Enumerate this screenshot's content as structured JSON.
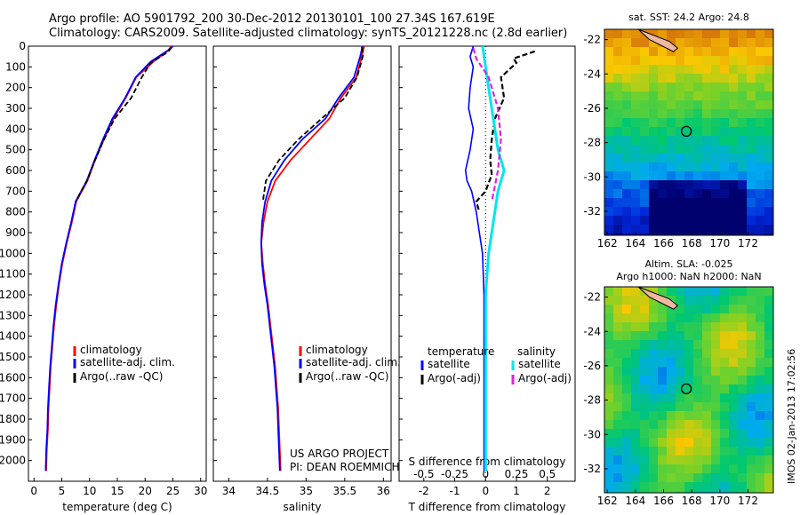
{
  "header": {
    "line1": "Argo profile: AO 5901792_200 30-Dec-2012 20130101_100 27.34S 167.619E",
    "line2": "Climatology: CARS2009. Satellite-adjusted climatology: synTS_20121228.nc (2.8d earlier)"
  },
  "maps": {
    "sst_title": "sat. SST: 24.2 Argo: 24.8",
    "sla_title1": "Altim. SLA: -0.025",
    "sla_title2": "Argo h1000: NaN h2000: NaN",
    "lat_ticks": [
      "-22",
      "-24",
      "-26",
      "-28",
      "-30",
      "-32"
    ],
    "lon_ticks": [
      "162",
      "164",
      "166",
      "168",
      "170",
      "172"
    ],
    "float_position": {
      "lon": 167.619,
      "lat": -27.34
    }
  },
  "stamp": "IMOS 02-Jan-2013 17:02:56",
  "colors": {
    "climatology": "#ff0000",
    "satellite": "#0000ff",
    "argo": "#000000",
    "satellite_salinity": "#00e5ee",
    "argo_salinity": "#e020e0"
  },
  "chart_data": [
    {
      "type": "line",
      "panel": "temperature",
      "xlabel": "temperature (deg C)",
      "xlim": [
        -1,
        31
      ],
      "ylim": [
        2100,
        0
      ],
      "xticks": [
        "0",
        "5",
        "10",
        "15",
        "20",
        "25",
        "30"
      ],
      "yticks": [
        "0",
        "100",
        "200",
        "300",
        "400",
        "500",
        "600",
        "700",
        "800",
        "900",
        "1000",
        "1100",
        "1200",
        "1300",
        "1400",
        "1500",
        "1600",
        "1700",
        "1800",
        "1900",
        "2000"
      ],
      "legend": [
        "climatology",
        "satellite-adj. clim.",
        "Argo(..raw -QC)"
      ],
      "series": [
        {
          "name": "climatology",
          "x": [
            24.7,
            24.2,
            21.5,
            18.4,
            16.5,
            14.3,
            12.6,
            11.0,
            9.6,
            7.6,
            6.8,
            5.9,
            5.1,
            4.5,
            4.0,
            3.6,
            3.3,
            3.0,
            2.8,
            2.6,
            2.5,
            2.3,
            2.2
          ],
          "y": [
            0,
            20,
            75,
            150,
            250,
            350,
            450,
            550,
            650,
            750,
            850,
            950,
            1050,
            1150,
            1250,
            1350,
            1450,
            1550,
            1650,
            1750,
            1850,
            1950,
            2050
          ]
        },
        {
          "name": "satellite-adj. clim.",
          "x": [
            25.0,
            24.1,
            21.0,
            18.3,
            16.4,
            14.1,
            12.4,
            10.9,
            9.5,
            7.5,
            6.7,
            5.8,
            5.0,
            4.4,
            3.9,
            3.5,
            3.2,
            2.9,
            2.7,
            2.5,
            2.4,
            2.2,
            2.1
          ],
          "y": [
            0,
            20,
            75,
            150,
            250,
            350,
            450,
            550,
            650,
            750,
            850,
            950,
            1050,
            1150,
            1250,
            1350,
            1450,
            1550,
            1650,
            1750,
            1850,
            1950,
            2050
          ]
        },
        {
          "name": "Argo(..raw -QC)",
          "x": [
            24.8,
            24.0,
            21.0,
            19.4,
            17.5,
            14.5,
            12.6,
            11.0,
            9.5,
            7.5
          ],
          "y": [
            5,
            30,
            80,
            150,
            250,
            350,
            450,
            550,
            650,
            750
          ]
        }
      ]
    },
    {
      "type": "line",
      "panel": "salinity",
      "xlabel": "salinity",
      "xlim": [
        33.8,
        36.1
      ],
      "ylim": [
        2100,
        0
      ],
      "xticks": [
        "34",
        "34.5",
        "35",
        "35.5",
        "36"
      ],
      "legend": [
        "climatology",
        "satellite-adj. clim.",
        "Argo(..raw -QC)"
      ],
      "annotation": [
        "US ARGO PROJECT",
        "PI: DEAN ROEMMICH"
      ],
      "series": [
        {
          "name": "climatology",
          "x": [
            35.75,
            35.72,
            35.65,
            35.45,
            35.3,
            35.05,
            34.8,
            34.6,
            34.5,
            34.45,
            34.42,
            34.44,
            34.47,
            34.51,
            34.54,
            34.57,
            34.6,
            34.62,
            34.64,
            34.65,
            34.66,
            34.67
          ],
          "y": [
            0,
            50,
            150,
            250,
            350,
            450,
            550,
            650,
            750,
            850,
            950,
            1050,
            1150,
            1250,
            1350,
            1450,
            1550,
            1650,
            1750,
            1850,
            1950,
            2050
          ]
        },
        {
          "name": "satellite-adj. clim.",
          "x": [
            35.73,
            35.7,
            35.62,
            35.42,
            35.25,
            34.95,
            34.72,
            34.55,
            34.47,
            34.43,
            34.42,
            34.43,
            34.46,
            34.5,
            34.53,
            34.56,
            34.59,
            34.61,
            34.63,
            34.64,
            34.65,
            34.66
          ],
          "y": [
            0,
            50,
            150,
            250,
            350,
            450,
            550,
            650,
            750,
            850,
            950,
            1050,
            1150,
            1250,
            1350,
            1450,
            1550,
            1650,
            1750,
            1850,
            1950,
            2050
          ]
        },
        {
          "name": "Argo(..raw -QC)",
          "x": [
            35.72,
            35.74,
            35.66,
            35.5,
            35.2,
            34.9,
            34.65,
            34.48,
            34.44
          ],
          "y": [
            5,
            40,
            150,
            250,
            350,
            450,
            550,
            650,
            750
          ]
        }
      ]
    },
    {
      "type": "line",
      "panel": "differences",
      "xlabel": "T difference from climatology",
      "xlabel_top": "S difference from climatology",
      "xlim": [
        -2.8,
        2.9
      ],
      "ylim": [
        2100,
        0
      ],
      "xticks": [
        "-2",
        "-1",
        "0",
        "1",
        "2"
      ],
      "xticks_top": [
        "-0.5",
        "-0.25",
        "0",
        "0.25",
        "0.5"
      ],
      "legend_left_title": "temperature",
      "legend_right_title": "salinity",
      "legend": [
        "satellite",
        "Argo(-adj)",
        "satellite",
        "Argo(-adj)"
      ],
      "series": [
        {
          "name": "satellite",
          "x": [
            -0.4,
            -0.5,
            -0.4,
            -0.5,
            -0.55,
            -0.4,
            -0.5,
            -0.65,
            -0.6,
            -0.45,
            -0.3,
            -0.2,
            -0.1,
            -0.05,
            -0.05,
            -0.05,
            -0.05,
            -0.05,
            -0.05,
            -0.05,
            -0.05
          ],
          "y": [
            0,
            50,
            100,
            200,
            300,
            400,
            500,
            600,
            650,
            700,
            800,
            900,
            1000,
            1200,
            1400,
            1500,
            1600,
            1700,
            1800,
            1900,
            2050
          ]
        },
        {
          "name": "Argo(-adj)",
          "x": [
            1.6,
            0.9,
            1.0,
            0.5,
            0.6,
            0.3,
            0.2,
            0.15,
            0.2,
            0.0,
            -0.3,
            -0.2
          ],
          "y": [
            25,
            60,
            80,
            150,
            250,
            350,
            450,
            550,
            620,
            700,
            750,
            800
          ]
        },
        {
          "name": "satellite",
          "x": [
            -0.05,
            0.0,
            0.05,
            0.1,
            0.15,
            0.2,
            0.3,
            0.2,
            0.15,
            0.1,
            0.05,
            0.0,
            0.0,
            0.0
          ],
          "y": [
            0,
            100,
            200,
            300,
            400,
            500,
            600,
            700,
            800,
            900,
            1000,
            1200,
            1600,
            2050
          ]
        },
        {
          "name": "Argo(-adj)",
          "x": [
            -0.2,
            -0.15,
            0.05,
            0.2,
            0.25,
            0.2,
            0.1
          ],
          "y": [
            10,
            60,
            150,
            300,
            450,
            600,
            750
          ]
        }
      ]
    }
  ]
}
